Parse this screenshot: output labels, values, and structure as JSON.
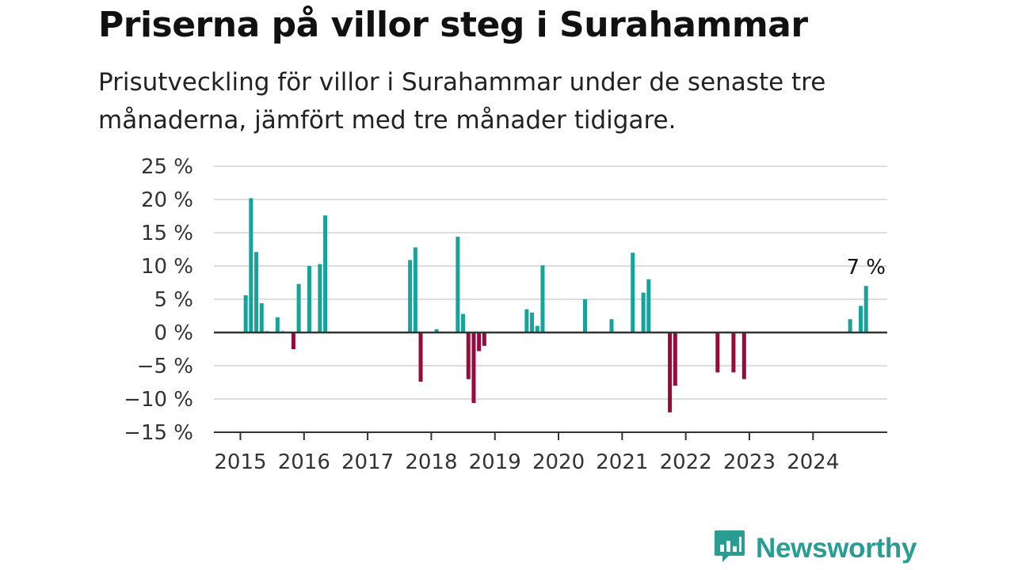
{
  "title": "Priserna på villor steg i Surahammar",
  "subtitle": "Prisutveckling för villor i Surahammar under de senaste tre månaderna, jämfört med tre månader tidigare.",
  "brand": {
    "name": "Newsworthy",
    "icon": "chart-speech-bubble-icon"
  },
  "colors": {
    "positive": "#16a399",
    "negative": "#990a3c",
    "grid": "#dddddd",
    "axis": "#333333",
    "brand": "#2a9d92"
  },
  "chart_data": {
    "type": "bar",
    "title": "Priserna på villor steg i Surahammar",
    "subtitle": "Prisutveckling för villor i Surahammar under de senaste tre månaderna, jämfört med tre månader tidigare.",
    "xlabel": "",
    "ylabel": "",
    "ylim": [
      -15,
      25
    ],
    "yticks": [
      25,
      20,
      15,
      10,
      5,
      0,
      -5,
      -10,
      -15
    ],
    "ytick_labels": [
      "25 %",
      "20 %",
      "15 %",
      "10 %",
      "5 %",
      "0 %",
      "−5 %",
      "−10 %",
      "−15 %"
    ],
    "xlim": [
      "2014-08",
      "2025-03"
    ],
    "xticks": [
      "2015",
      "2016",
      "2017",
      "2018",
      "2019",
      "2020",
      "2021",
      "2022",
      "2023",
      "2024"
    ],
    "grid": true,
    "annotation": {
      "x": "2024-11",
      "text": "7 %"
    },
    "x": [
      "2015-02",
      "2015-03",
      "2015-04",
      "2015-05",
      "2015-06",
      "2015-08",
      "2015-09",
      "2015-11",
      "2015-12",
      "2016-02",
      "2016-04",
      "2016-05",
      "2017-09",
      "2017-10",
      "2017-11",
      "2018-02",
      "2018-06",
      "2018-07",
      "2018-08",
      "2018-09",
      "2018-10",
      "2018-11",
      "2019-07",
      "2019-08",
      "2019-09",
      "2019-10",
      "2020-06",
      "2020-11",
      "2021-03",
      "2021-05",
      "2021-06",
      "2021-10",
      "2021-11",
      "2022-07",
      "2022-10",
      "2022-12",
      "2024-08",
      "2024-10",
      "2024-11"
    ],
    "values": [
      5.6,
      20.2,
      12.1,
      4.4,
      0.2,
      2.3,
      0.2,
      -2.5,
      7.3,
      10.0,
      10.3,
      17.6,
      10.9,
      12.8,
      -7.4,
      0.5,
      14.4,
      2.8,
      -7.0,
      -10.6,
      -2.8,
      -2.0,
      3.5,
      3.0,
      1.0,
      10.1,
      5.0,
      2.0,
      12.0,
      6.0,
      8.0,
      -12.0,
      -8.0,
      -6.0,
      -6.0,
      -7.0,
      2.0,
      4.0,
      7.0
    ]
  }
}
